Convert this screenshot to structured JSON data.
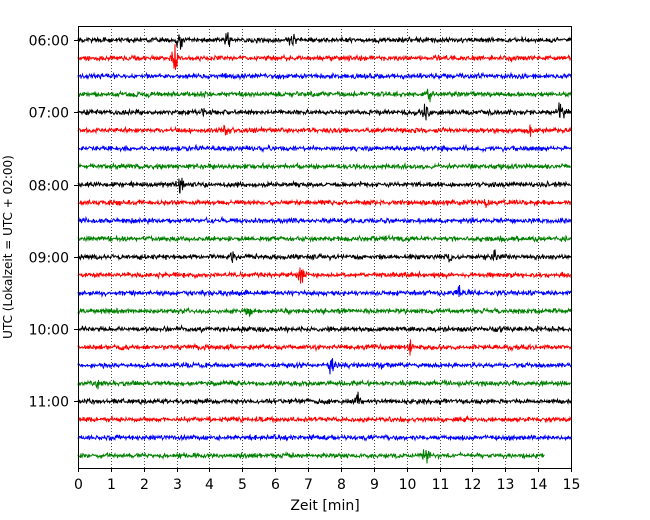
{
  "chart_data": {
    "type": "line",
    "title": "",
    "xlabel": "Zeit  [min]",
    "ylabel": "UTC (Lokalzeit = UTC + 02:00)",
    "xlim": [
      0,
      15
    ],
    "x_ticks": [
      "0",
      "1",
      "2",
      "3",
      "4",
      "5",
      "6",
      "7",
      "8",
      "9",
      "10",
      "11",
      "12",
      "13",
      "14",
      "15"
    ],
    "y_ticks": [
      "06:00",
      "07:00",
      "08:00",
      "09:00",
      "10:00",
      "11:00"
    ],
    "y_tick_rows": [
      0,
      4,
      8,
      12,
      16,
      20
    ],
    "grid": "vertical dotted",
    "legend": "none",
    "trace_colors": [
      "#000000",
      "#ff0000",
      "#0000ff",
      "#008000"
    ],
    "traces": [
      {
        "start": "06:00",
        "x_end": 15
      },
      {
        "start": "06:15",
        "x_end": 15
      },
      {
        "start": "06:30",
        "x_end": 15
      },
      {
        "start": "06:45",
        "x_end": 15
      },
      {
        "start": "07:00",
        "x_end": 15
      },
      {
        "start": "07:15",
        "x_end": 15
      },
      {
        "start": "07:30",
        "x_end": 15
      },
      {
        "start": "07:45",
        "x_end": 15
      },
      {
        "start": "08:00",
        "x_end": 15
      },
      {
        "start": "08:15",
        "x_end": 15
      },
      {
        "start": "08:30",
        "x_end": 15
      },
      {
        "start": "08:45",
        "x_end": 15
      },
      {
        "start": "09:00",
        "x_end": 15
      },
      {
        "start": "09:15",
        "x_end": 15
      },
      {
        "start": "09:30",
        "x_end": 15
      },
      {
        "start": "09:45",
        "x_end": 15
      },
      {
        "start": "10:00",
        "x_end": 15
      },
      {
        "start": "10:15",
        "x_end": 15
      },
      {
        "start": "10:30",
        "x_end": 15
      },
      {
        "start": "10:45",
        "x_end": 15
      },
      {
        "start": "11:00",
        "x_end": 15
      },
      {
        "start": "11:15",
        "x_end": 15
      },
      {
        "start": "11:30",
        "x_end": 15
      },
      {
        "start": "11:45",
        "x_end": 14.2
      }
    ],
    "events": [
      {
        "trace": 0,
        "x": 3.1,
        "amp": 1.0
      },
      {
        "trace": 0,
        "x": 4.55,
        "amp": 1.0
      },
      {
        "trace": 0,
        "x": 6.5,
        "amp": 0.9
      },
      {
        "trace": 1,
        "x": 2.95,
        "amp": 1.3
      },
      {
        "trace": 3,
        "x": 10.7,
        "amp": 0.6
      },
      {
        "trace": 4,
        "x": 3.8,
        "amp": 0.5
      },
      {
        "trace": 4,
        "x": 10.6,
        "amp": 1.0
      },
      {
        "trace": 4,
        "x": 14.7,
        "amp": 1.4
      },
      {
        "trace": 5,
        "x": 4.5,
        "amp": 0.4
      },
      {
        "trace": 5,
        "x": 13.7,
        "amp": 1.0
      },
      {
        "trace": 8,
        "x": 3.1,
        "amp": 1.2
      },
      {
        "trace": 9,
        "x": 12.4,
        "amp": 0.6
      },
      {
        "trace": 12,
        "x": 4.7,
        "amp": 0.6
      },
      {
        "trace": 12,
        "x": 11.3,
        "amp": 0.6
      },
      {
        "trace": 12,
        "x": 12.7,
        "amp": 0.5
      },
      {
        "trace": 13,
        "x": 6.8,
        "amp": 0.9
      },
      {
        "trace": 14,
        "x": 11.6,
        "amp": 0.6
      },
      {
        "trace": 15,
        "x": 5.2,
        "amp": 0.6
      },
      {
        "trace": 17,
        "x": 10.1,
        "amp": 0.7
      },
      {
        "trace": 18,
        "x": 7.7,
        "amp": 1.1
      },
      {
        "trace": 18,
        "x": 9.2,
        "amp": 0.5
      },
      {
        "trace": 19,
        "x": 0.6,
        "amp": 0.6
      },
      {
        "trace": 20,
        "x": 8.5,
        "amp": 0.6
      },
      {
        "trace": 23,
        "x": 10.6,
        "amp": 1.1
      }
    ]
  }
}
